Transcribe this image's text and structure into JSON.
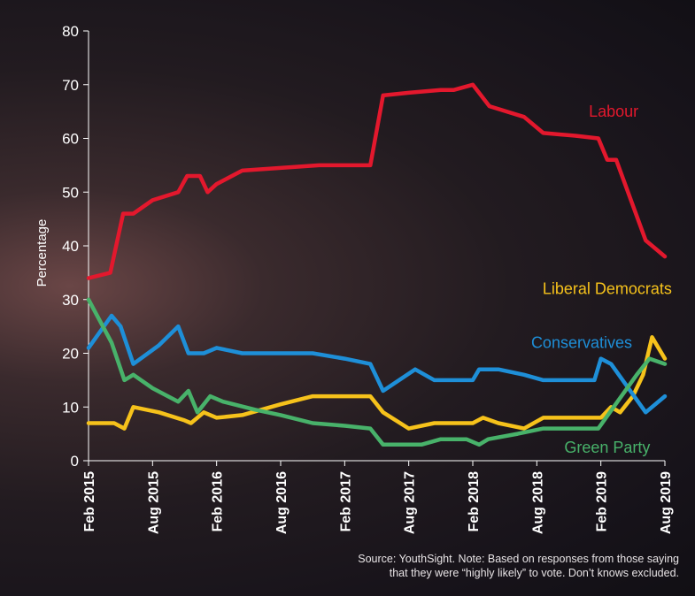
{
  "chart_data": {
    "type": "line",
    "ylabel": "Percentage",
    "xlabel": "",
    "ylim": [
      0,
      80
    ],
    "yticks": [
      0,
      10,
      20,
      30,
      40,
      50,
      60,
      70,
      80
    ],
    "xlim": [
      2015.0,
      2019.5
    ],
    "x_ticks": [
      {
        "value": 2015.0,
        "label": "Feb 2015"
      },
      {
        "value": 2015.5,
        "label": "Aug 2015"
      },
      {
        "value": 2016.0,
        "label": "Feb 2016"
      },
      {
        "value": 2016.5,
        "label": "Aug 2016"
      },
      {
        "value": 2017.0,
        "label": "Feb 2017"
      },
      {
        "value": 2017.5,
        "label": "Aug 2017"
      },
      {
        "value": 2018.0,
        "label": "Feb 2018"
      },
      {
        "value": 2018.5,
        "label": "Aug 2018"
      },
      {
        "value": 2019.0,
        "label": "Feb 2019"
      },
      {
        "value": 2019.5,
        "label": "Aug 2019"
      }
    ],
    "series": [
      {
        "name": "Labour",
        "color": "#e3182d",
        "points": [
          [
            2015.0,
            34
          ],
          [
            2015.17,
            35
          ],
          [
            2015.27,
            46
          ],
          [
            2015.35,
            46
          ],
          [
            2015.5,
            48.5
          ],
          [
            2015.7,
            50
          ],
          [
            2015.77,
            53
          ],
          [
            2015.87,
            53
          ],
          [
            2015.93,
            50
          ],
          [
            2016.0,
            51.5
          ],
          [
            2016.2,
            54
          ],
          [
            2016.5,
            54.5
          ],
          [
            2016.8,
            55
          ],
          [
            2017.0,
            55
          ],
          [
            2017.2,
            55
          ],
          [
            2017.3,
            68
          ],
          [
            2017.5,
            68.5
          ],
          [
            2017.75,
            69
          ],
          [
            2017.85,
            69
          ],
          [
            2018.0,
            70
          ],
          [
            2018.13,
            66
          ],
          [
            2018.4,
            64
          ],
          [
            2018.55,
            61
          ],
          [
            2018.8,
            60.5
          ],
          [
            2018.98,
            60
          ],
          [
            2019.05,
            56
          ],
          [
            2019.12,
            56
          ],
          [
            2019.35,
            41
          ],
          [
            2019.5,
            38
          ]
        ],
        "label_pos": {
          "x": 2019.1,
          "y": 64
        }
      },
      {
        "name": "Liberal Democrats",
        "color": "#f6c21b",
        "points": [
          [
            2015.0,
            7
          ],
          [
            2015.2,
            7
          ],
          [
            2015.28,
            6
          ],
          [
            2015.35,
            10
          ],
          [
            2015.55,
            9
          ],
          [
            2015.75,
            7.5
          ],
          [
            2015.8,
            7
          ],
          [
            2015.9,
            9
          ],
          [
            2016.0,
            8
          ],
          [
            2016.2,
            8.5
          ],
          [
            2016.5,
            10.5
          ],
          [
            2016.75,
            12
          ],
          [
            2017.0,
            12
          ],
          [
            2017.2,
            12
          ],
          [
            2017.3,
            9
          ],
          [
            2017.5,
            6
          ],
          [
            2017.7,
            7
          ],
          [
            2017.9,
            7
          ],
          [
            2018.0,
            7
          ],
          [
            2018.08,
            8
          ],
          [
            2018.2,
            7
          ],
          [
            2018.4,
            6
          ],
          [
            2018.55,
            8
          ],
          [
            2018.8,
            8
          ],
          [
            2019.0,
            8
          ],
          [
            2019.08,
            10
          ],
          [
            2019.15,
            9
          ],
          [
            2019.25,
            12
          ],
          [
            2019.33,
            16
          ],
          [
            2019.4,
            23
          ],
          [
            2019.5,
            19
          ]
        ],
        "label_pos": {
          "x": 2019.05,
          "y": 31
        }
      },
      {
        "name": "Conservatives",
        "color": "#1e8fd8",
        "points": [
          [
            2015.0,
            21
          ],
          [
            2015.18,
            27
          ],
          [
            2015.25,
            25
          ],
          [
            2015.35,
            18
          ],
          [
            2015.55,
            21.5
          ],
          [
            2015.7,
            25
          ],
          [
            2015.78,
            20
          ],
          [
            2015.9,
            20
          ],
          [
            2016.0,
            21
          ],
          [
            2016.2,
            20
          ],
          [
            2016.5,
            20
          ],
          [
            2016.75,
            20
          ],
          [
            2017.0,
            19
          ],
          [
            2017.2,
            18
          ],
          [
            2017.3,
            13
          ],
          [
            2017.55,
            17
          ],
          [
            2017.7,
            15
          ],
          [
            2017.9,
            15
          ],
          [
            2018.0,
            15
          ],
          [
            2018.05,
            17
          ],
          [
            2018.2,
            17
          ],
          [
            2018.4,
            16
          ],
          [
            2018.55,
            15
          ],
          [
            2018.8,
            15
          ],
          [
            2018.95,
            15
          ],
          [
            2019.0,
            19
          ],
          [
            2019.08,
            18
          ],
          [
            2019.2,
            14
          ],
          [
            2019.35,
            9
          ],
          [
            2019.5,
            12
          ]
        ],
        "label_pos": {
          "x": 2018.85,
          "y": 21
        }
      },
      {
        "name": "Green Party",
        "color": "#48b26a",
        "points": [
          [
            2015.0,
            30
          ],
          [
            2015.18,
            22
          ],
          [
            2015.28,
            15
          ],
          [
            2015.35,
            16
          ],
          [
            2015.5,
            13.5
          ],
          [
            2015.7,
            11
          ],
          [
            2015.78,
            13
          ],
          [
            2015.85,
            9
          ],
          [
            2015.95,
            12
          ],
          [
            2016.05,
            11
          ],
          [
            2016.3,
            9.5
          ],
          [
            2016.5,
            8.5
          ],
          [
            2016.75,
            7
          ],
          [
            2017.0,
            6.5
          ],
          [
            2017.2,
            6
          ],
          [
            2017.3,
            3
          ],
          [
            2017.6,
            3
          ],
          [
            2017.75,
            4
          ],
          [
            2017.95,
            4
          ],
          [
            2018.05,
            3
          ],
          [
            2018.12,
            4
          ],
          [
            2018.35,
            5
          ],
          [
            2018.55,
            6
          ],
          [
            2018.8,
            6
          ],
          [
            2018.98,
            6
          ],
          [
            2019.1,
            10
          ],
          [
            2019.28,
            16
          ],
          [
            2019.38,
            19
          ],
          [
            2019.5,
            18
          ]
        ],
        "label_pos": {
          "x": 2019.05,
          "y": 1.5
        }
      }
    ]
  },
  "source_note": {
    "line1": "Source: YouthSight. Note: Based on responses from those saying",
    "line2": "that they were “highly likely” to vote. Don’t knows excluded."
  }
}
